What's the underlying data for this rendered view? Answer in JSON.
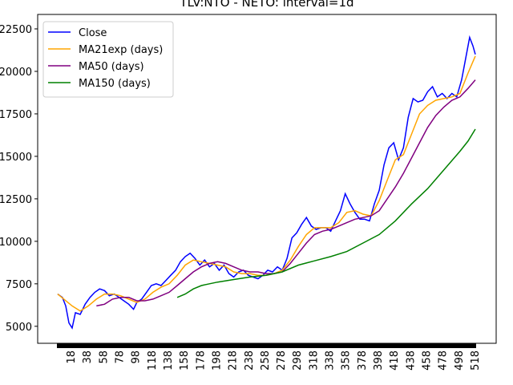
{
  "chart_data": {
    "type": "line",
    "title": "TLV:NTO - NETO: interval=1d",
    "xlim": [
      -22.7,
      544.8
    ],
    "ylim": [
      4000,
      23350
    ],
    "xticks": [
      18,
      38,
      58,
      78,
      98,
      118,
      138,
      158,
      178,
      198,
      218,
      238,
      258,
      278,
      298,
      318,
      338,
      358,
      378,
      398,
      418,
      438,
      458,
      478,
      498,
      518
    ],
    "yticks": [
      5000,
      7500,
      10000,
      12500,
      15000,
      17500,
      20000,
      22500
    ],
    "legend": "upper left",
    "series": [
      {
        "name": "Close",
        "color": "#0000ff",
        "x": [
          2,
          8,
          12,
          16,
          20,
          24,
          30,
          36,
          42,
          48,
          54,
          60,
          66,
          72,
          78,
          84,
          90,
          96,
          100,
          106,
          112,
          118,
          124,
          130,
          136,
          142,
          148,
          154,
          160,
          166,
          172,
          178,
          184,
          190,
          196,
          202,
          208,
          214,
          220,
          226,
          232,
          238,
          244,
          250,
          256,
          262,
          268,
          274,
          280,
          286,
          292,
          298,
          304,
          310,
          316,
          322,
          328,
          334,
          340,
          346,
          352,
          358,
          364,
          370,
          376,
          382,
          388,
          394,
          400,
          406,
          412,
          418,
          424,
          430,
          436,
          442,
          448,
          454,
          460,
          466,
          472,
          478,
          484,
          490,
          496,
          502,
          508,
          512,
          516,
          519
        ],
        "values": [
          6900,
          6700,
          6200,
          5200,
          4900,
          5800,
          5700,
          6300,
          6700,
          7000,
          7200,
          7100,
          6800,
          6900,
          6700,
          6500,
          6300,
          6000,
          6400,
          6600,
          7000,
          7400,
          7500,
          7400,
          7700,
          8000,
          8300,
          8800,
          9100,
          9300,
          9000,
          8600,
          8900,
          8500,
          8700,
          8300,
          8600,
          8100,
          7900,
          8200,
          8300,
          8000,
          7900,
          7800,
          8000,
          8300,
          8200,
          8500,
          8300,
          9000,
          10200,
          10500,
          11000,
          11400,
          10900,
          10700,
          10800,
          10800,
          10600,
          11200,
          11800,
          12800,
          12200,
          11700,
          11300,
          11300,
          11200,
          12200,
          13000,
          14500,
          15500,
          15800,
          14800,
          15500,
          17300,
          18400,
          18200,
          18300,
          18800,
          19100,
          18500,
          18700,
          18400,
          18700,
          18500,
          19500,
          21000,
          22000,
          21500,
          21000
        ]
      },
      {
        "name": "MA21exp (days)",
        "color": "#ffa500",
        "x": [
          2,
          20,
          30,
          40,
          50,
          60,
          70,
          80,
          90,
          100,
          110,
          120,
          130,
          140,
          150,
          160,
          170,
          180,
          190,
          200,
          210,
          220,
          230,
          240,
          250,
          260,
          270,
          280,
          290,
          300,
          310,
          320,
          330,
          340,
          350,
          360,
          370,
          380,
          390,
          400,
          410,
          420,
          430,
          440,
          450,
          460,
          470,
          480,
          490,
          500,
          510,
          519
        ],
        "values": [
          6900,
          6200,
          5900,
          6200,
          6600,
          6900,
          6900,
          6800,
          6600,
          6400,
          6600,
          7000,
          7300,
          7500,
          8000,
          8600,
          8900,
          8800,
          8700,
          8600,
          8500,
          8200,
          8100,
          8100,
          8000,
          8000,
          8100,
          8300,
          8900,
          9700,
          10400,
          10800,
          10800,
          10800,
          11100,
          11700,
          11800,
          11600,
          11500,
          12400,
          13600,
          14800,
          15100,
          16300,
          17500,
          18000,
          18300,
          18400,
          18500,
          18700,
          19900,
          20900
        ]
      },
      {
        "name": "MA50 (days)",
        "color": "#800080",
        "x": [
          50,
          60,
          70,
          80,
          90,
          100,
          110,
          120,
          130,
          140,
          150,
          160,
          170,
          180,
          190,
          200,
          210,
          220,
          230,
          240,
          250,
          260,
          270,
          280,
          290,
          300,
          310,
          320,
          330,
          340,
          350,
          360,
          370,
          380,
          390,
          400,
          410,
          420,
          430,
          440,
          450,
          460,
          470,
          480,
          490,
          500,
          510,
          519
        ],
        "values": [
          6200,
          6300,
          6600,
          6700,
          6700,
          6500,
          6500,
          6600,
          6800,
          7000,
          7400,
          7800,
          8200,
          8500,
          8700,
          8800,
          8700,
          8500,
          8300,
          8200,
          8200,
          8100,
          8100,
          8200,
          8700,
          9300,
          9900,
          10400,
          10600,
          10700,
          10900,
          11100,
          11300,
          11400,
          11500,
          11800,
          12500,
          13200,
          14000,
          14900,
          15800,
          16700,
          17400,
          17900,
          18300,
          18500,
          19000,
          19500
        ]
      },
      {
        "name": "MA150 (days)",
        "color": "#008000",
        "x": [
          150,
          160,
          170,
          180,
          190,
          200,
          220,
          240,
          260,
          280,
          300,
          320,
          340,
          360,
          380,
          400,
          420,
          440,
          460,
          480,
          500,
          510,
          519
        ],
        "values": [
          6700,
          6900,
          7200,
          7400,
          7500,
          7600,
          7750,
          7900,
          8000,
          8200,
          8600,
          8850,
          9100,
          9400,
          9900,
          10400,
          11200,
          12200,
          13100,
          14200,
          15300,
          15900,
          16600
        ]
      }
    ]
  }
}
